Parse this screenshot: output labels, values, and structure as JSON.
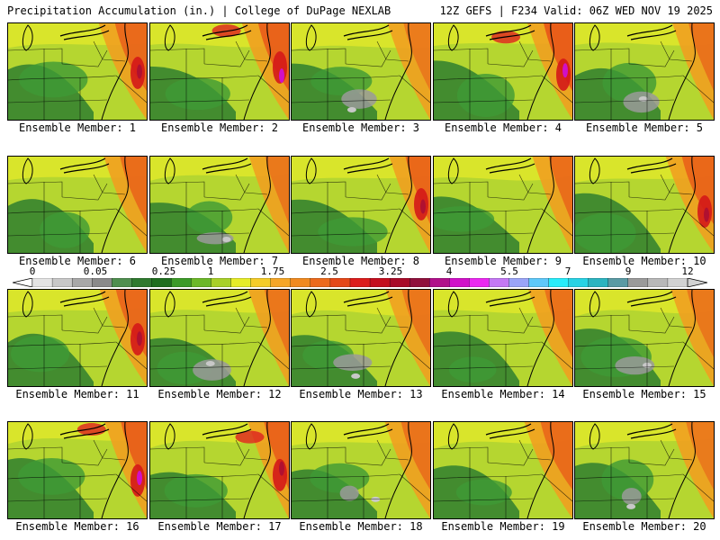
{
  "header": {
    "title": "Precipitation Accumulation (in.) | College of DuPage NEXLAB",
    "run_info": "12Z GEFS | F234 Valid: 06Z WED NOV 19 2025"
  },
  "panels": [
    {
      "caption": "Ensemble Member: 1",
      "intensity": 0.55
    },
    {
      "caption": "Ensemble Member: 2",
      "intensity": 0.7
    },
    {
      "caption": "Ensemble Member: 3",
      "intensity": 0.2
    },
    {
      "caption": "Ensemble Member: 4",
      "intensity": 0.8
    },
    {
      "caption": "Ensemble Member: 5",
      "intensity": 0.35
    },
    {
      "caption": "Ensemble Member: 6",
      "intensity": 0.5
    },
    {
      "caption": "Ensemble Member: 7",
      "intensity": 0.25
    },
    {
      "caption": "Ensemble Member: 8",
      "intensity": 0.6
    },
    {
      "caption": "Ensemble Member: 9",
      "intensity": 0.45
    },
    {
      "caption": "Ensemble Member: 10",
      "intensity": 0.6
    },
    {
      "caption": "Ensemble Member: 11",
      "intensity": 0.55
    },
    {
      "caption": "Ensemble Member: 12",
      "intensity": 0.3
    },
    {
      "caption": "Ensemble Member: 13",
      "intensity": 0.3
    },
    {
      "caption": "Ensemble Member: 14",
      "intensity": 0.4
    },
    {
      "caption": "Ensemble Member: 15",
      "intensity": 0.25
    },
    {
      "caption": "Ensemble Member: 16",
      "intensity": 0.7
    },
    {
      "caption": "Ensemble Member: 17",
      "intensity": 0.65
    },
    {
      "caption": "Ensemble Member: 18",
      "intensity": 0.35
    },
    {
      "caption": "Ensemble Member: 19",
      "intensity": 0.5
    },
    {
      "caption": "Ensemble Member: 20",
      "intensity": 0.2
    }
  ],
  "legend": {
    "labels": [
      "0",
      "0.05",
      "0.25",
      "1",
      "1.75",
      "2.5",
      "3.25",
      "4",
      "5.5",
      "7",
      "9",
      "12"
    ],
    "colors": [
      "#e4e4e4",
      "#c8c8c8",
      "#a8a8a8",
      "#8a8a8a",
      "#4f8f4f",
      "#2f7a2f",
      "#1f6e1f",
      "#3c9a28",
      "#6cb828",
      "#a8d028",
      "#e6ec28",
      "#f4cc28",
      "#f5a628",
      "#f08a20",
      "#ec6a1c",
      "#e54818",
      "#dc1c1c",
      "#c40e1e",
      "#a80a28",
      "#90103c",
      "#b0108a",
      "#d010c8",
      "#ea28f0",
      "#c478f4",
      "#9aa4f8",
      "#5ec8fa",
      "#28ecfa",
      "#28d2e4",
      "#2cb4c0",
      "#5a9aa4",
      "#9a9a9a",
      "#b8b8b8",
      "#d2d2d2"
    ]
  }
}
